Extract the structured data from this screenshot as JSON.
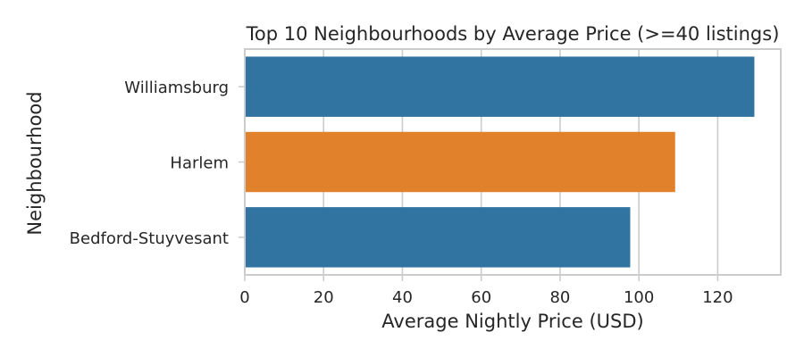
{
  "chart_data": {
    "type": "bar",
    "orientation": "horizontal",
    "title": "Top 10 Neighbourhoods by Average Price (>=40 listings)",
    "xlabel": "Average Nightly Price (USD)",
    "ylabel": "Neighbourhood",
    "categories": [
      "Williamsburg",
      "Harlem",
      "Bedford-Stuyvesant"
    ],
    "values": [
      129.3,
      109.2,
      97.8
    ],
    "colors": [
      "#3274a1",
      "#e1812c",
      "#3274a1"
    ],
    "xlim": [
      0,
      136
    ],
    "xticks": [
      0,
      20,
      40,
      60,
      80,
      100,
      120
    ],
    "grid": "vertical",
    "style": {
      "grid_color": "#cccccc",
      "spine_color": "#cccccc",
      "text_color": "#262626"
    }
  }
}
